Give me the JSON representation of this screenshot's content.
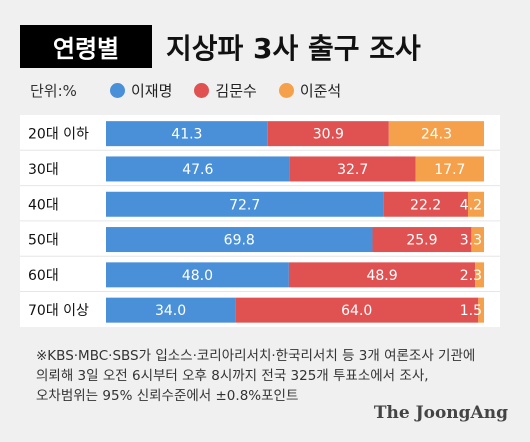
{
  "header": {
    "tag": "연령별",
    "title": "지상파 3사 출구 조사"
  },
  "unit_label": "단위:%",
  "colors": {
    "lee": "#4a90d9",
    "kim": "#e05252",
    "lee2": "#f5a04a"
  },
  "chart_data": {
    "type": "bar",
    "stacked": true,
    "orientation": "horizontal",
    "categories": [
      "20대 이하",
      "30대",
      "40대",
      "50대",
      "60대",
      "70대 이상"
    ],
    "series": [
      {
        "name": "이재명",
        "values": [
          41.3,
          47.6,
          72.7,
          69.8,
          48.0,
          34.0
        ],
        "labels": [
          "41.3",
          "47.6",
          "72.7",
          "69.8",
          "48.0",
          "34.0"
        ]
      },
      {
        "name": "김문수",
        "values": [
          30.9,
          32.7,
          22.2,
          25.9,
          48.9,
          64.0
        ],
        "labels": [
          "30.9",
          "32.7",
          "22.2",
          "25.9",
          "48.9",
          "64.0"
        ]
      },
      {
        "name": "이준석",
        "values": [
          24.3,
          17.7,
          4.2,
          3.3,
          2.3,
          1.5
        ],
        "labels": [
          "24.3",
          "17.7",
          "4.2",
          "3.3",
          "2.3",
          "1.5"
        ]
      }
    ]
  },
  "footnote": [
    "※KBS·MBC·SBS가 입소스·코리아리서치·한국리서치 등 3개 여론조사 기관에",
    "의뢰해 3일 오전 6시부터 오후 8시까지 전국 325개 투표소에서 조사,",
    "오차범위는 95% 신뢰수준에서 ±0.8%포인트"
  ],
  "brand": "The JoongAng"
}
